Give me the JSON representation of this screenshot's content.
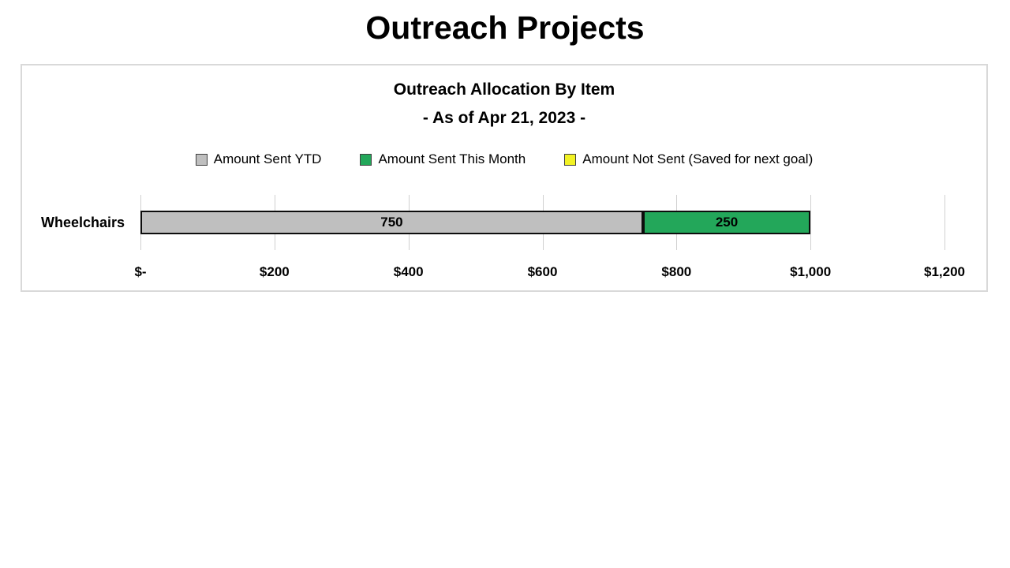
{
  "page": {
    "title": "Outreach Projects"
  },
  "chart_data": {
    "type": "bar",
    "orientation": "horizontal",
    "stacked": true,
    "title": "Outreach Allocation By Item",
    "subtitle": "- As of Apr 21, 2023 -",
    "categories": [
      "Wheelchairs"
    ],
    "series": [
      {
        "name": "Amount Sent YTD",
        "values": [
          750
        ],
        "color": "#bfbfbf"
      },
      {
        "name": "Amount Sent This Month",
        "values": [
          250
        ],
        "color": "#23a75a"
      },
      {
        "name": "Amount Not Sent (Saved for next goal)",
        "values": [
          0
        ],
        "color": "#f2f224"
      }
    ],
    "data_labels": [
      "750",
      "250"
    ],
    "xlabel": "",
    "ylabel": "",
    "xlim": [
      0,
      1200
    ],
    "x_ticks": [
      "$-",
      "$200",
      "$400",
      "$600",
      "$800",
      "$1,000",
      "$1,200"
    ],
    "x_tick_values": [
      0,
      200,
      400,
      600,
      800,
      1000,
      1200
    ],
    "grid": "vertical",
    "legend_position": "top",
    "colors": {
      "bar_border": "#0d0d0d",
      "gridline": "#d0d0d0",
      "chart_border": "#d9d9d9"
    }
  }
}
